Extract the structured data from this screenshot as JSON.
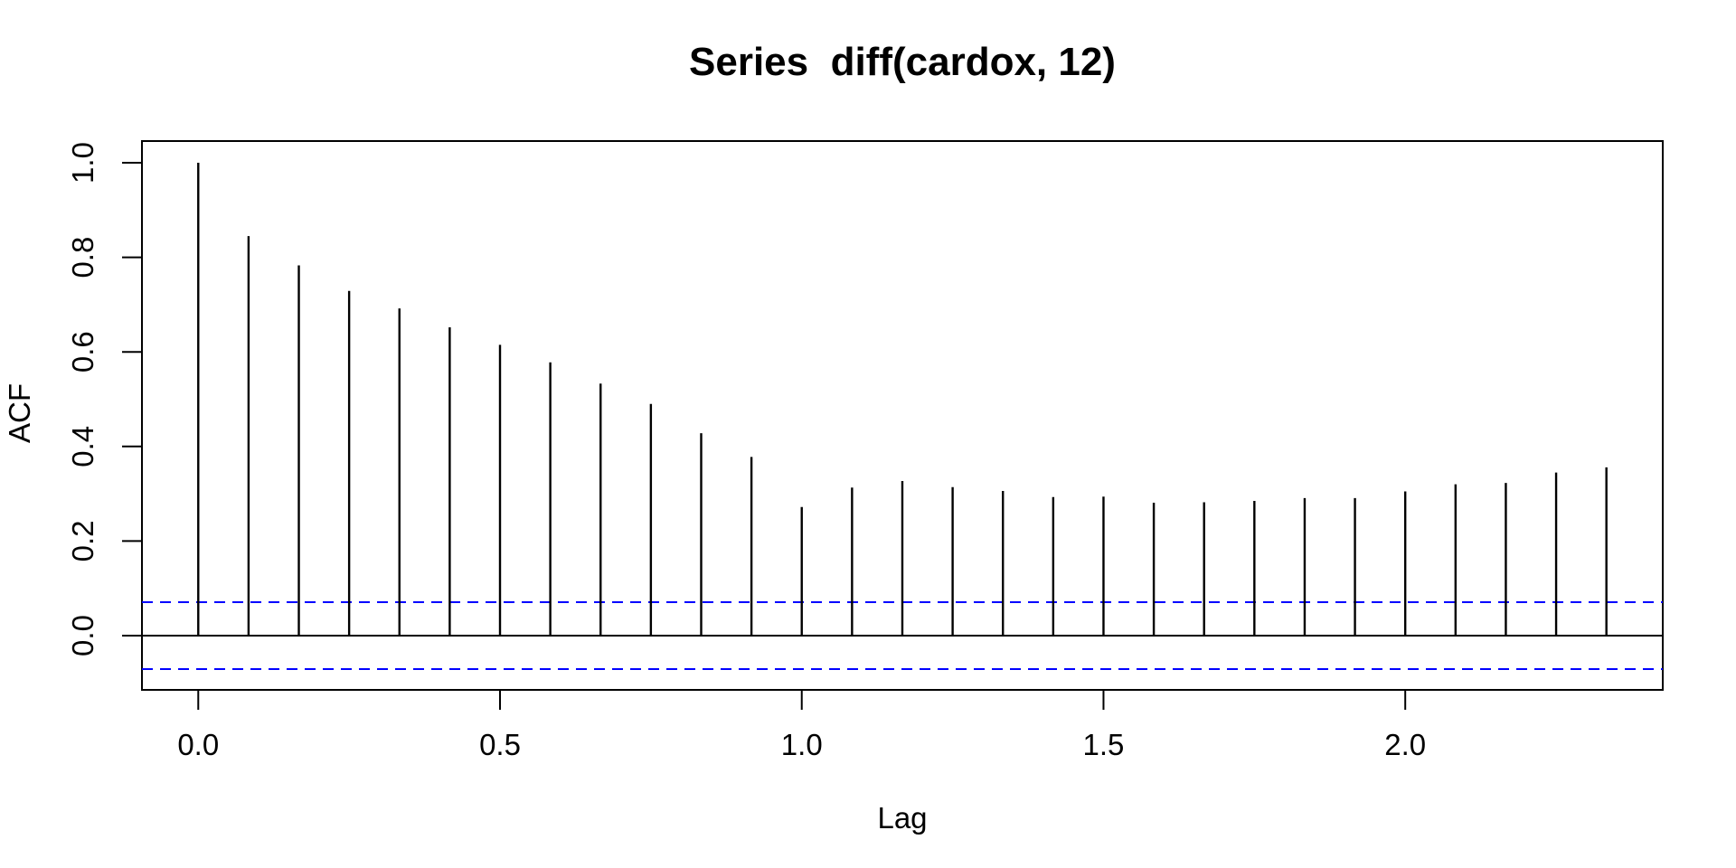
{
  "page": {
    "background_color": "#ffffff"
  },
  "chart_data": {
    "type": "bar",
    "subtype": "acf-stem-plot",
    "title": "Series  diff(cardox, 12)",
    "xlabel": "Lag",
    "ylabel": "ACF",
    "x_unit": "lag in years, monthly data (12 lags per 1.0)",
    "lags_months": [
      0,
      1,
      2,
      3,
      4,
      5,
      6,
      7,
      8,
      9,
      10,
      11,
      12,
      13,
      14,
      15,
      16,
      17,
      18,
      19,
      20,
      21,
      22,
      23,
      24,
      25,
      26,
      27,
      28
    ],
    "values": [
      1.0,
      0.845,
      0.783,
      0.729,
      0.692,
      0.652,
      0.615,
      0.578,
      0.533,
      0.49,
      0.428,
      0.378,
      0.272,
      0.313,
      0.327,
      0.314,
      0.306,
      0.293,
      0.294,
      0.281,
      0.282,
      0.285,
      0.291,
      0.291,
      0.305,
      0.32,
      0.323,
      0.345,
      0.356
    ],
    "conf_bound_upper": 0.0708,
    "conf_bound_lower": -0.0708,
    "conf_line_style": "dashed",
    "conf_line_color": "#0000ff",
    "bar_color": "#000000",
    "axis_color": "#000000",
    "xlim": [
      -0.0933,
      2.4267
    ],
    "ylim": [
      -0.1147,
      1.0459
    ],
    "x_tick_values": [
      0.0,
      0.5,
      1.0,
      1.5,
      2.0
    ],
    "x_tick_labels": [
      "0.0",
      "0.5",
      "1.0",
      "1.5",
      "2.0"
    ],
    "y_tick_values": [
      0.0,
      0.2,
      0.4,
      0.6,
      0.8,
      1.0
    ],
    "y_tick_labels": [
      "0.0",
      "0.2",
      "0.4",
      "0.6",
      "0.8",
      "1.0"
    ],
    "grid": false,
    "legend": false,
    "zero_line": true
  }
}
